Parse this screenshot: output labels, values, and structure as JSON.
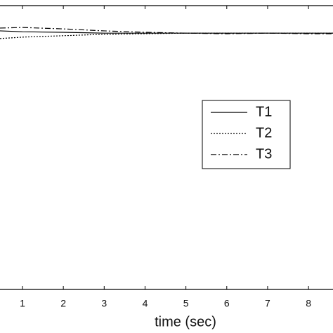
{
  "chart_data": {
    "type": "line",
    "x_label": "time (sec)",
    "x": [
      0.45,
      1,
      2,
      3,
      4,
      5,
      6,
      7,
      8,
      8.6
    ],
    "series": [
      {
        "name": "T1",
        "color": "#000000",
        "dash": "solid",
        "values": [
          9.11,
          9.08,
          9.06,
          9.03,
          9.03,
          9.03,
          9.03,
          9.03,
          9.03,
          9.03
        ]
      },
      {
        "name": "T2",
        "color": "#000000",
        "dash": "dotted",
        "values": [
          8.84,
          8.89,
          8.94,
          8.99,
          9.01,
          9.03,
          9.03,
          9.03,
          9.03,
          9.03
        ]
      },
      {
        "name": "T3",
        "color": "#000000",
        "dash": "dashdot",
        "values": [
          9.21,
          9.23,
          9.18,
          9.11,
          9.06,
          9.03,
          9.01,
          9.03,
          9.01,
          9.01
        ]
      }
    ],
    "xlim": [
      0.45,
      8.6
    ],
    "xticks": [
      1,
      2,
      3,
      4,
      5,
      6,
      7,
      8
    ],
    "ylim": [
      0,
      10
    ],
    "grid": false
  }
}
